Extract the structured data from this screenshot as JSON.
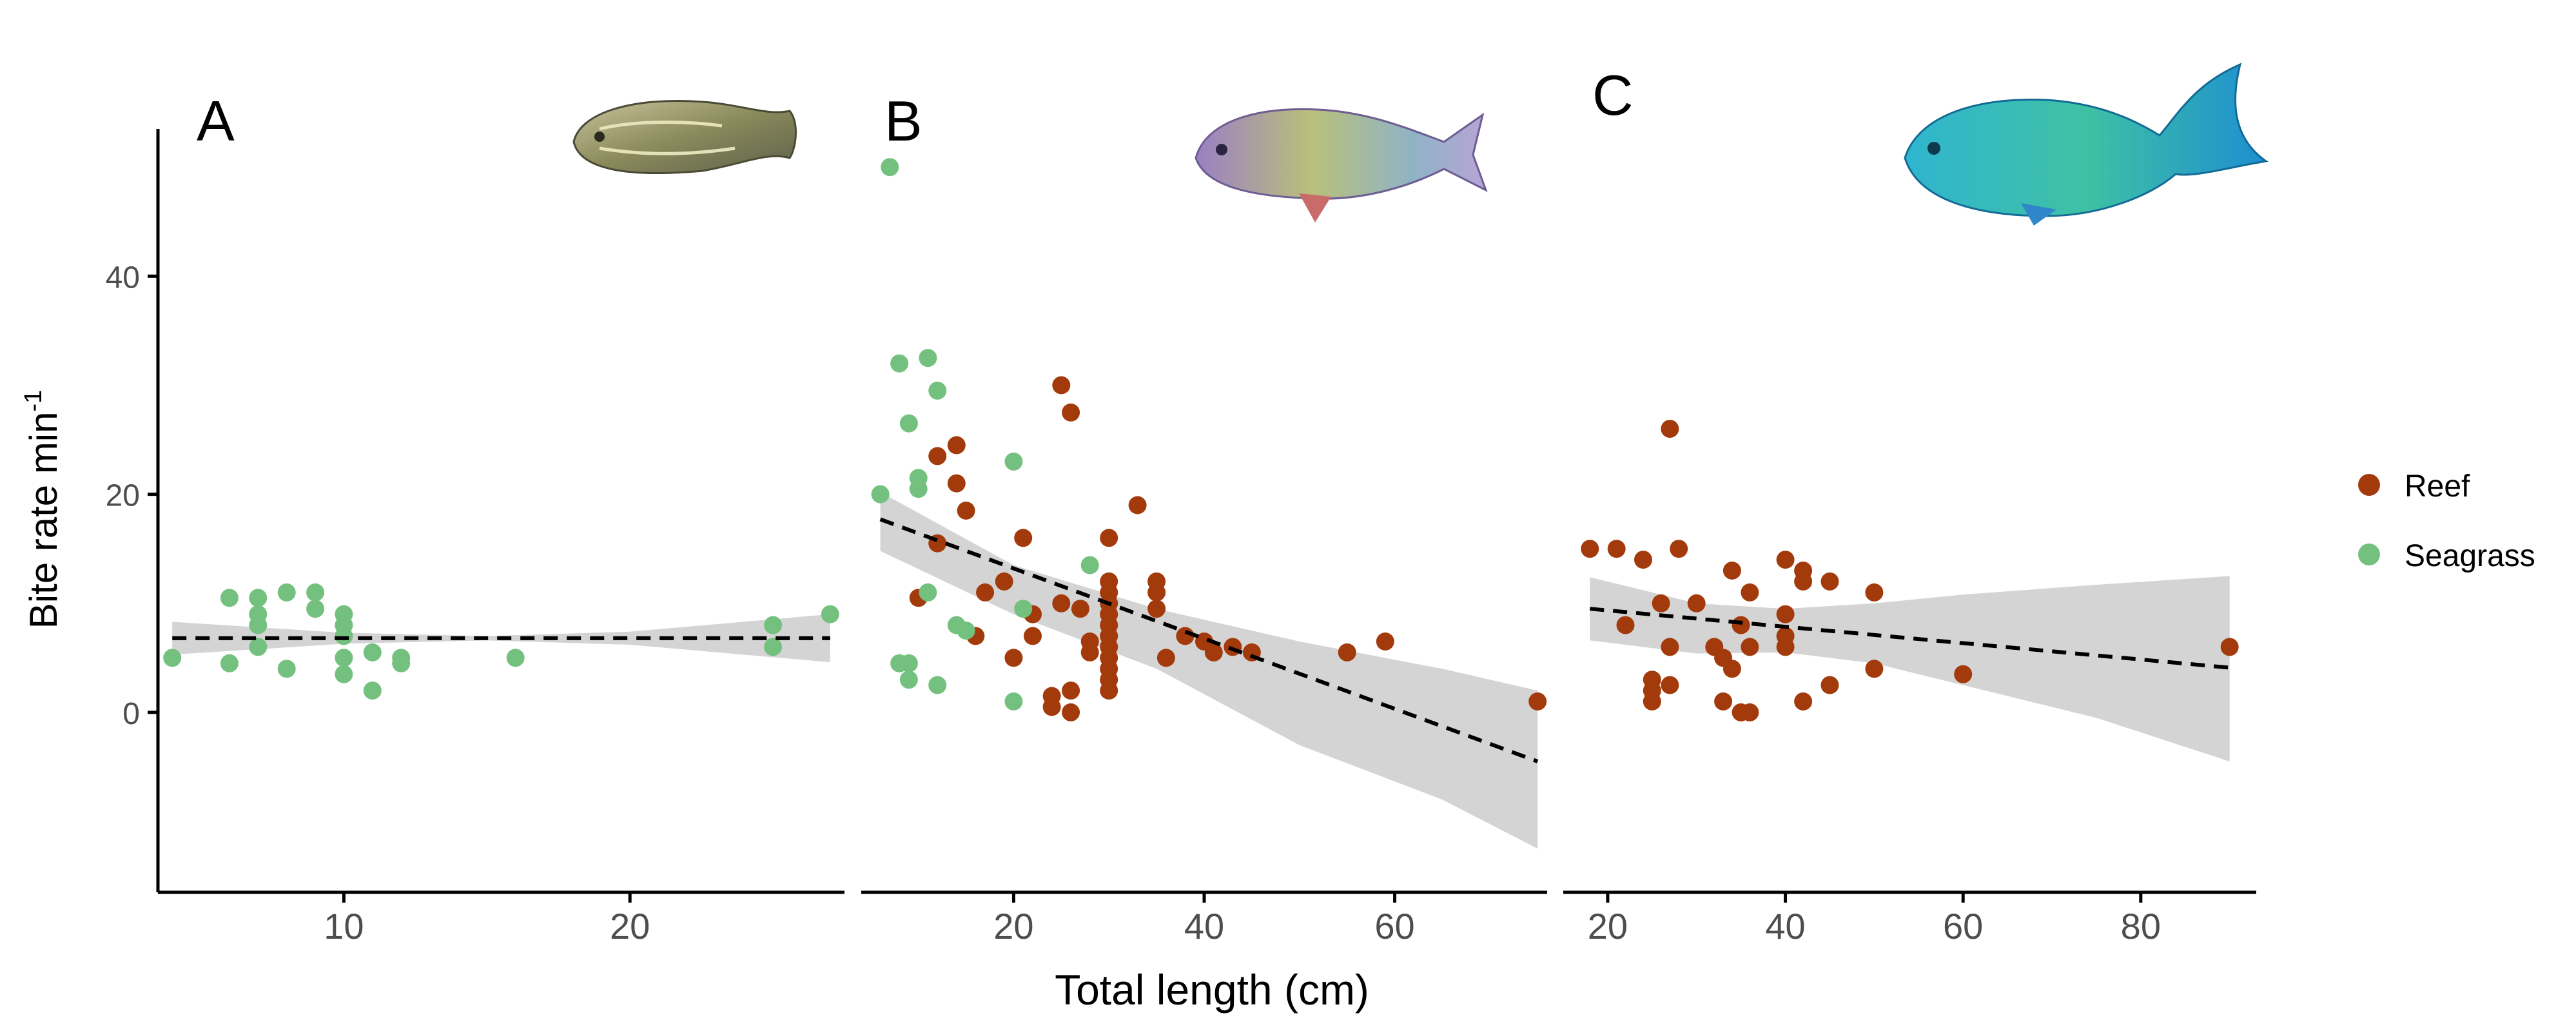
{
  "ylabel": "Bite rate min",
  "ylabel_sup": "-1",
  "xlabel": "Total length (cm)",
  "colors": {
    "Reef": "#a33a0c",
    "Seagrass": "#74c17f",
    "ribbon": "#d4d4d4",
    "fit": "#000000"
  },
  "chart_data": [
    {
      "type": "scatter",
      "panel": "A",
      "illustration": "juvenile-fish-icon",
      "xlabel": "",
      "ylabel": "Bite rate min-1",
      "xlim": [
        3.5,
        27.5
      ],
      "ylim": [
        -16.5,
        53.5
      ],
      "xticks": [
        10,
        20
      ],
      "yticks": [
        0,
        20,
        40
      ],
      "grid": false,
      "series": [
        {
          "name": "Seagrass",
          "points": [
            [
              4,
              5
            ],
            [
              6,
              10.5
            ],
            [
              6,
              4.5
            ],
            [
              7,
              10.5
            ],
            [
              7,
              9
            ],
            [
              7,
              8
            ],
            [
              7,
              6
            ],
            [
              8,
              11
            ],
            [
              8,
              4
            ],
            [
              9,
              11
            ],
            [
              9,
              9.5
            ],
            [
              10,
              9
            ],
            [
              10,
              8
            ],
            [
              10,
              7
            ],
            [
              10,
              5
            ],
            [
              10,
              3.5
            ],
            [
              11,
              5.5
            ],
            [
              11,
              2
            ],
            [
              12,
              5
            ],
            [
              12,
              4.5
            ],
            [
              16,
              5
            ],
            [
              25,
              8
            ],
            [
              25,
              6
            ],
            [
              27,
              9
            ]
          ]
        }
      ],
      "fit": {
        "x": [
          4,
          27
        ],
        "y": [
          6.8,
          6.8
        ]
      },
      "ribbon": {
        "x": [
          4,
          10,
          15,
          20,
          27
        ],
        "upper": [
          8.3,
          7.3,
          7.0,
          7.4,
          9.0
        ],
        "lower": [
          5.3,
          6.3,
          6.6,
          6.2,
          4.6
        ]
      }
    },
    {
      "type": "scatter",
      "panel": "B",
      "illustration": "parrotfish-icon",
      "xlabel": "Total length (cm)",
      "ylabel": "",
      "xlim": [
        4,
        76
      ],
      "ylim": [
        -16.5,
        53.5
      ],
      "xticks": [
        20,
        40,
        60
      ],
      "yticks": [
        0,
        20,
        40
      ],
      "grid": false,
      "series": [
        {
          "name": "Reef",
          "points": [
            [
              10,
              10.5
            ],
            [
              12,
              23.5
            ],
            [
              12,
              15.5
            ],
            [
              14,
              24.5
            ],
            [
              14,
              21
            ],
            [
              15,
              18.5
            ],
            [
              16,
              7
            ],
            [
              17,
              11
            ],
            [
              19,
              12
            ],
            [
              20,
              5
            ],
            [
              21,
              16
            ],
            [
              22,
              7
            ],
            [
              22,
              9
            ],
            [
              24,
              1.5
            ],
            [
              24,
              0.5
            ],
            [
              25,
              30
            ],
            [
              25,
              10
            ],
            [
              26,
              27.5
            ],
            [
              26,
              2
            ],
            [
              26,
              0
            ],
            [
              27,
              9.5
            ],
            [
              28,
              6.5
            ],
            [
              28,
              5.5
            ],
            [
              30,
              16
            ],
            [
              30,
              12
            ],
            [
              30,
              11
            ],
            [
              30,
              10
            ],
            [
              30,
              9
            ],
            [
              30,
              8
            ],
            [
              30,
              7
            ],
            [
              30,
              6
            ],
            [
              30,
              5
            ],
            [
              30,
              4
            ],
            [
              30,
              3
            ],
            [
              30,
              2
            ],
            [
              33,
              19
            ],
            [
              35,
              12
            ],
            [
              35,
              11
            ],
            [
              35,
              9.5
            ],
            [
              36,
              5
            ],
            [
              38,
              7
            ],
            [
              40,
              6.5
            ],
            [
              41,
              5.5
            ],
            [
              43,
              6
            ],
            [
              45,
              5.5
            ],
            [
              55,
              5.5
            ],
            [
              59,
              6.5
            ],
            [
              75,
              1
            ]
          ]
        },
        {
          "name": "Seagrass",
          "points": [
            [
              7,
              50
            ],
            [
              6,
              20
            ],
            [
              8,
              32
            ],
            [
              9,
              26.5
            ],
            [
              8,
              4.5
            ],
            [
              9,
              4.5
            ],
            [
              9,
              3
            ],
            [
              10,
              20.5
            ],
            [
              10,
              21.5
            ],
            [
              11,
              32.5
            ],
            [
              11,
              11
            ],
            [
              12,
              29.5
            ],
            [
              12,
              2.5
            ],
            [
              14,
              8
            ],
            [
              15,
              7.5
            ],
            [
              20,
              23
            ],
            [
              20,
              1
            ],
            [
              21,
              9.5
            ],
            [
              28,
              13.5
            ]
          ]
        }
      ],
      "fit": {
        "x": [
          6,
          75
        ],
        "y": [
          17.7,
          -4.5
        ]
      },
      "ribbon": {
        "x": [
          6,
          20,
          35,
          50,
          65,
          75
        ],
        "upper": [
          20.2,
          13.5,
          9.5,
          6.5,
          4.0,
          2.0
        ],
        "lower": [
          14.8,
          9.0,
          4.0,
          -3.0,
          -8.0,
          -12.5
        ]
      }
    },
    {
      "type": "scatter",
      "panel": "C",
      "illustration": "blue-parrotfish-icon",
      "xlabel": "",
      "ylabel": "",
      "xlim": [
        15,
        93
      ],
      "ylim": [
        -16.5,
        53.5
      ],
      "xticks": [
        20,
        40,
        60,
        80
      ],
      "yticks": [
        0,
        20,
        40
      ],
      "grid": false,
      "series": [
        {
          "name": "Reef",
          "points": [
            [
              18,
              15
            ],
            [
              21,
              15
            ],
            [
              22,
              8
            ],
            [
              24,
              14
            ],
            [
              25,
              3
            ],
            [
              25,
              2
            ],
            [
              25,
              1
            ],
            [
              26,
              10
            ],
            [
              27,
              26
            ],
            [
              27,
              6
            ],
            [
              27,
              2.5
            ],
            [
              28,
              15
            ],
            [
              30,
              10
            ],
            [
              32,
              6
            ],
            [
              33,
              1
            ],
            [
              33,
              5
            ],
            [
              34,
              13
            ],
            [
              34,
              4
            ],
            [
              35,
              8
            ],
            [
              35,
              0
            ],
            [
              36,
              11
            ],
            [
              36,
              6
            ],
            [
              36,
              0
            ],
            [
              40,
              14
            ],
            [
              40,
              9
            ],
            [
              40,
              7
            ],
            [
              40,
              6
            ],
            [
              42,
              13
            ],
            [
              42,
              12
            ],
            [
              42,
              1
            ],
            [
              45,
              12
            ],
            [
              45,
              2.5
            ],
            [
              50,
              11
            ],
            [
              50,
              4
            ],
            [
              60,
              3.5
            ],
            [
              90,
              6
            ]
          ]
        }
      ],
      "fit": {
        "x": [
          18,
          90
        ],
        "y": [
          9.5,
          4.1
        ]
      },
      "ribbon": {
        "x": [
          18,
          30,
          40,
          50,
          60,
          75,
          90
        ],
        "upper": [
          12.4,
          10.0,
          9.5,
          10.0,
          10.8,
          11.7,
          12.5
        ],
        "lower": [
          6.6,
          5.4,
          5.5,
          4.5,
          2.5,
          -0.5,
          -4.5
        ]
      }
    }
  ],
  "legend": {
    "position": "right",
    "items": [
      {
        "label": "Reef",
        "color": "#a33a0c"
      },
      {
        "label": "Seagrass",
        "color": "#74c17f"
      }
    ]
  }
}
